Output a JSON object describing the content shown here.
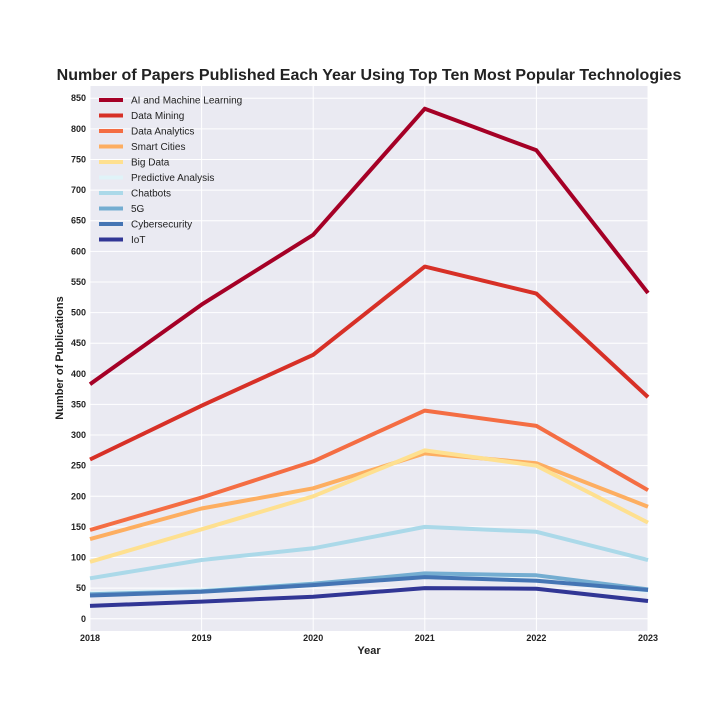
{
  "chart_data": {
    "type": "line",
    "title": "Number of Papers Published Each Year Using Top Ten Most Popular Technologies",
    "xlabel": "Year",
    "ylabel": "Number of Publications",
    "x": [
      2018,
      2019,
      2020,
      2021,
      2022,
      2023
    ],
    "xlim": [
      2018,
      2023
    ],
    "ylim": [
      -20,
      870
    ],
    "yticks": [
      0,
      50,
      100,
      150,
      200,
      250,
      300,
      350,
      400,
      450,
      500,
      550,
      600,
      650,
      700,
      750,
      800,
      850
    ],
    "grid": true,
    "legend_position": "top-left",
    "background": "#EAEAF2",
    "series": [
      {
        "name": "AI and Machine Learning",
        "color": "#A50026",
        "values": [
          383,
          513,
          627,
          833,
          765,
          532
        ]
      },
      {
        "name": "Data Mining",
        "color": "#D73027",
        "values": [
          260,
          348,
          431,
          575,
          531,
          362
        ]
      },
      {
        "name": "Data Analytics",
        "color": "#F46D43",
        "values": [
          145,
          198,
          257,
          340,
          315,
          210
        ]
      },
      {
        "name": "Smart Cities",
        "color": "#FDAE61",
        "values": [
          130,
          180,
          213,
          270,
          254,
          183
        ]
      },
      {
        "name": "Big Data",
        "color": "#FEE090",
        "values": [
          93,
          146,
          200,
          275,
          250,
          157
        ]
      },
      {
        "name": "Predictive Analysis",
        "color": "#E0F3F8",
        "values": [
          42,
          47,
          58,
          72,
          63,
          45
        ]
      },
      {
        "name": "Chatbots",
        "color": "#ABD9E9",
        "values": [
          66,
          96,
          115,
          150,
          142,
          96
        ]
      },
      {
        "name": "5G",
        "color": "#74ADD1",
        "values": [
          40,
          45,
          57,
          74,
          71,
          48
        ]
      },
      {
        "name": "Cybersecurity",
        "color": "#4575B4",
        "values": [
          38,
          44,
          55,
          68,
          62,
          47
        ]
      },
      {
        "name": "IoT",
        "color": "#313695",
        "values": [
          21,
          28,
          36,
          50,
          49,
          29
        ]
      }
    ]
  }
}
